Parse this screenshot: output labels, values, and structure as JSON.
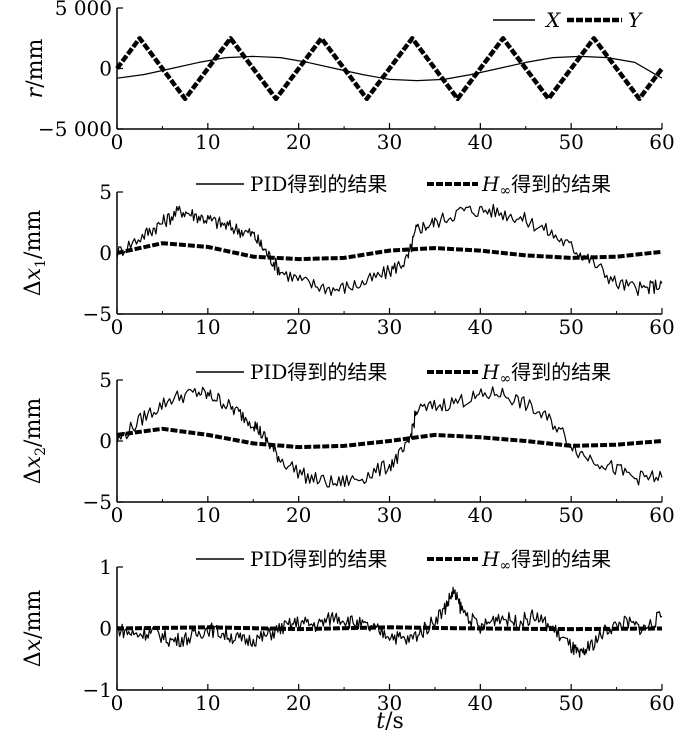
{
  "chart_data": [
    {
      "type": "line",
      "ylabel_var": "r",
      "ylabel_unit": "/mm",
      "ylim": [
        -5000,
        5000
      ],
      "yticks": [
        "5 000",
        "0",
        "−5 000"
      ],
      "xlim": [
        0,
        60
      ],
      "xticks": [
        "0",
        "10",
        "20",
        "30",
        "40",
        "50",
        "60"
      ],
      "legend_position": "top-right",
      "series": [
        {
          "name": "X",
          "style": "solid",
          "x": [
            0,
            3,
            6,
            9,
            12,
            15,
            18,
            21,
            24,
            27,
            30,
            33,
            36,
            39,
            42,
            45,
            48,
            51,
            54,
            57,
            60
          ],
          "values": [
            -800,
            -500,
            0,
            500,
            900,
            1000,
            900,
            500,
            0,
            -500,
            -900,
            -1000,
            -900,
            -500,
            0,
            500,
            900,
            1000,
            900,
            500,
            -800
          ]
        },
        {
          "name": "Y",
          "style": "dashed-bold",
          "x": [
            0,
            2.5,
            7.5,
            12.5,
            17.5,
            22.5,
            27.5,
            32.5,
            37.5,
            42.5,
            47.5,
            52.5,
            57.5,
            60
          ],
          "values": [
            0,
            2500,
            -2500,
            2500,
            -2500,
            2500,
            -2500,
            2500,
            -2500,
            2500,
            -2500,
            2500,
            -2500,
            0
          ]
        }
      ]
    },
    {
      "type": "line",
      "ylabel_var": "Δx",
      "ylabel_sub": "1",
      "ylabel_unit": "/mm",
      "ylim": [
        -5,
        5
      ],
      "yticks": [
        "5",
        "0",
        "−5"
      ],
      "xlim": [
        0,
        60
      ],
      "xticks": [
        "0",
        "10",
        "20",
        "30",
        "40",
        "50",
        "60"
      ],
      "legend_position": "top-right",
      "series": [
        {
          "name": "PID得到的结果",
          "style": "solid-noisy",
          "x": [
            0,
            3,
            5,
            7,
            9,
            11,
            13,
            15,
            16.5,
            18,
            21,
            24,
            27,
            30,
            32,
            33,
            35,
            38,
            41,
            44,
            47,
            50,
            52,
            55,
            58,
            60
          ],
          "values": [
            0,
            1.5,
            2.5,
            3.5,
            3.0,
            2.5,
            2.0,
            1.5,
            0,
            -1.5,
            -2.5,
            -3.0,
            -2.5,
            -1.5,
            -0.5,
            2.0,
            2.5,
            3.5,
            3.5,
            3.0,
            2.0,
            0.5,
            -0.5,
            -2.5,
            -3.0,
            -2.5
          ]
        },
        {
          "name": "H∞得到的结果",
          "style": "dashed-bold",
          "x": [
            0,
            5,
            10,
            15,
            20,
            25,
            30,
            35,
            40,
            45,
            50,
            55,
            60
          ],
          "values": [
            0,
            0.8,
            0.5,
            -0.3,
            -0.5,
            -0.4,
            0.2,
            0.4,
            0.2,
            -0.2,
            -0.4,
            -0.3,
            0.1
          ]
        }
      ]
    },
    {
      "type": "line",
      "ylabel_var": "Δx",
      "ylabel_sub": "2",
      "ylabel_unit": "/mm",
      "ylim": [
        -5,
        5
      ],
      "yticks": [
        "5",
        "0",
        "−5"
      ],
      "xlim": [
        0,
        60
      ],
      "xticks": [
        "0",
        "10",
        "20",
        "30",
        "40",
        "50",
        "60"
      ],
      "legend_position": "top-right",
      "series": [
        {
          "name": "PID得到的结果",
          "style": "solid-noisy",
          "x": [
            0,
            3,
            6,
            9,
            11,
            13,
            15,
            16.5,
            18,
            21,
            24,
            27,
            30,
            32,
            33,
            36,
            39,
            42,
            45,
            48,
            51,
            54,
            57,
            60
          ],
          "values": [
            0,
            2.0,
            3.5,
            4.0,
            3.5,
            2.5,
            1.5,
            0,
            -1.5,
            -3.0,
            -3.5,
            -3.0,
            -2.0,
            -0.5,
            2.5,
            3.0,
            3.5,
            4.0,
            3.0,
            1.5,
            -1.0,
            -2.0,
            -3.0,
            -3.0
          ]
        },
        {
          "name": "H∞得到的结果",
          "style": "dashed-bold",
          "x": [
            0,
            5,
            10,
            15,
            20,
            25,
            30,
            35,
            40,
            45,
            50,
            55,
            60
          ],
          "values": [
            0.5,
            1.0,
            0.5,
            -0.2,
            -0.5,
            -0.4,
            0.0,
            0.5,
            0.3,
            0.0,
            -0.4,
            -0.3,
            0.0
          ]
        }
      ]
    },
    {
      "type": "line",
      "ylabel_var": "Δx",
      "ylabel_unit": "/mm",
      "ylim": [
        -1,
        1
      ],
      "yticks": [
        "1",
        "0",
        "−1"
      ],
      "xlim": [
        0,
        60
      ],
      "xticks": [
        "0",
        "10",
        "20",
        "30",
        "40",
        "50",
        "60"
      ],
      "xlabel_var": "t",
      "xlabel_unit": "/s",
      "legend_position": "top-right",
      "series": [
        {
          "name": "PID得到的结果",
          "style": "solid-noisy",
          "x": [
            0,
            2,
            4,
            6,
            8,
            10,
            12,
            14,
            16,
            18,
            20,
            22,
            24,
            26,
            28,
            30,
            32,
            34,
            36,
            37,
            38,
            40,
            42,
            44,
            46,
            48,
            50,
            51,
            52,
            54,
            56,
            58,
            60
          ],
          "values": [
            0,
            -0.1,
            -0.05,
            -0.2,
            -0.15,
            0.0,
            -0.1,
            -0.2,
            -0.15,
            0.0,
            0.1,
            0.05,
            0.2,
            0.1,
            0.0,
            -0.1,
            -0.2,
            0.0,
            0.3,
            0.6,
            0.3,
            0.0,
            0.2,
            0.1,
            0.2,
            0.0,
            -0.3,
            -0.45,
            -0.3,
            0.0,
            0.1,
            0.0,
            0.2
          ]
        },
        {
          "name": "H∞得到的结果",
          "style": "dashed-bold",
          "x": [
            0,
            10,
            20,
            30,
            40,
            50,
            60
          ],
          "values": [
            0,
            0.02,
            -0.01,
            0.02,
            0.0,
            -0.01,
            0.0
          ]
        }
      ]
    }
  ]
}
